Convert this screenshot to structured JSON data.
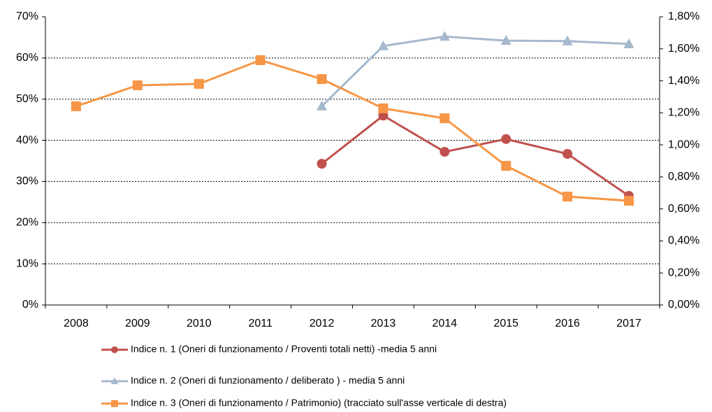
{
  "chart_data": {
    "type": "line",
    "categories": [
      "2008",
      "2009",
      "2010",
      "2011",
      "2012",
      "2013",
      "2014",
      "2015",
      "2016",
      "2017"
    ],
    "series": [
      {
        "name": "Indice n. 1 (Oneri di funzionamento / Proventi totali netti) -media 5 anni",
        "color": "#c0504d",
        "marker": "circle",
        "values": [
          null,
          null,
          null,
          null,
          34.3,
          46.0,
          37.2,
          40.3,
          36.7,
          26.5
        ]
      },
      {
        "name": "Indice n. 2 (Oneri di funzionamento / deliberato ) - media 5 anni",
        "color": "#a5b8cc",
        "marker": "triangle",
        "values": [
          null,
          null,
          null,
          null,
          48.3,
          62.9,
          65.2,
          64.2,
          64.1,
          63.4
        ]
      },
      {
        "name": "Indice n. 3 (Oneri di funzionamento / Patrimonio) (tracciato sull'asse verticale di destra)",
        "color": "#f79646",
        "marker": "square",
        "axis": "y2",
        "values": [
          1.241,
          1.372,
          1.381,
          1.529,
          1.411,
          1.228,
          1.166,
          0.869,
          0.677,
          0.651
        ]
      }
    ],
    "ylim": [
      0,
      70
    ],
    "yticks": [
      {
        "value": 0,
        "label": "0%"
      },
      {
        "value": 10,
        "label": "10%"
      },
      {
        "value": 20,
        "label": "20%"
      },
      {
        "value": 30,
        "label": "30%"
      },
      {
        "value": 40,
        "label": "40%"
      },
      {
        "value": 50,
        "label": "50%"
      },
      {
        "value": 60,
        "label": "60%"
      },
      {
        "value": 70,
        "label": "70%"
      }
    ],
    "y2lim": [
      0,
      1.8
    ],
    "y2ticks": [
      {
        "value": 0,
        "label": "0,00%"
      },
      {
        "value": 0.2,
        "label": "0,20%"
      },
      {
        "value": 0.4,
        "label": "0,40%"
      },
      {
        "value": 0.6,
        "label": "0,60%"
      },
      {
        "value": 0.8,
        "label": "0,80%"
      },
      {
        "value": 1.0,
        "label": "1,00%"
      },
      {
        "value": 1.2,
        "label": "1,20%"
      },
      {
        "value": 1.4,
        "label": "1,40%"
      },
      {
        "value": 1.6,
        "label": "1,60%"
      },
      {
        "value": 1.8,
        "label": "1,80%"
      }
    ],
    "grid": true,
    "legend": "bottom"
  }
}
